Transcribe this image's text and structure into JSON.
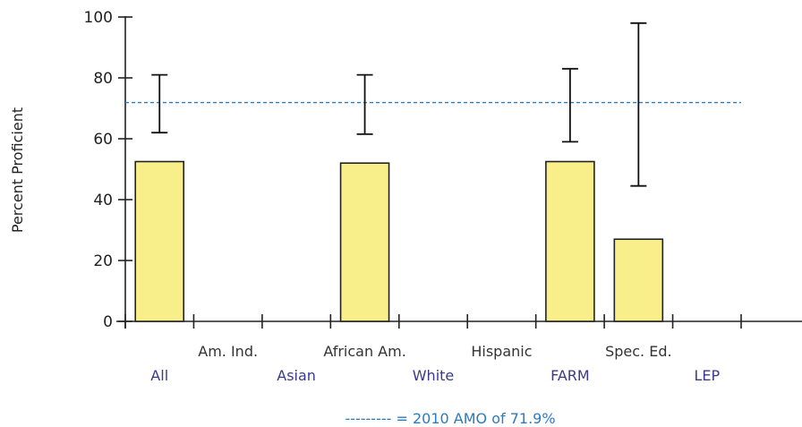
{
  "chart_data": {
    "type": "bar",
    "categories": [
      "All",
      "Am. Ind.",
      "Asian",
      "African Am.",
      "White",
      "Hispanic",
      "FARM",
      "Spec. Ed.",
      "LEP"
    ],
    "values": [
      52.5,
      null,
      null,
      52.0,
      null,
      null,
      52.5,
      27.0,
      null
    ],
    "error_bars": [
      {
        "category": "All",
        "low": 62,
        "high": 81
      },
      {
        "category": "African Am.",
        "low": 61.5,
        "high": 81
      },
      {
        "category": "FARM",
        "low": 59,
        "high": 83
      },
      {
        "category": "Spec. Ed.",
        "low": 44.5,
        "high": 98
      }
    ],
    "reference_line": {
      "value": 71.9,
      "legend_text": "--------- = 2010 AMO of 71.9%"
    },
    "ylabel": "Percent Proficient",
    "xlabel": "",
    "title": "",
    "ylim": [
      0,
      100
    ],
    "yticks": [
      "0",
      "20",
      "40",
      "60",
      "80",
      "100"
    ],
    "grid": false,
    "colors": {
      "bar_fill": "#f9ef8a",
      "bar_stroke": "#222222",
      "reference_line": "#2b7bc0",
      "legend_text": "#2b7bc0",
      "label_blue": "#3a3a8c",
      "label_dark": "#333333"
    }
  }
}
